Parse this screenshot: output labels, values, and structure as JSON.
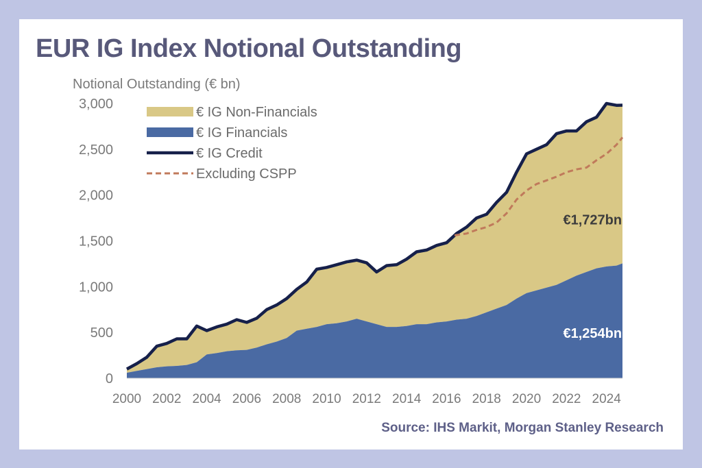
{
  "title": "EUR IG Index Notional Outstanding",
  "source": "Source: IHS Markit, Morgan Stanley Research",
  "colors": {
    "background": "#bfc5e4",
    "non_financials": "#d9c886",
    "financials": "#4a6aa3",
    "credit": "#16204a",
    "excluding_cspp": "#c07a5b",
    "title": "#58597a"
  },
  "chart_data": {
    "type": "area",
    "ylabel": "Notional Outstanding (€ bn)",
    "xlabel": "",
    "xlim": [
      2000,
      2024.8
    ],
    "ylim": [
      0,
      3000
    ],
    "yticks": [
      0,
      500,
      1000,
      1500,
      2000,
      2500,
      3000
    ],
    "ytick_labels": [
      "0",
      "500",
      "1,000",
      "1,500",
      "2,000",
      "2,500",
      "3,000"
    ],
    "xticks": [
      2000,
      2002,
      2004,
      2006,
      2008,
      2010,
      2012,
      2014,
      2016,
      2018,
      2020,
      2022,
      2024
    ],
    "xtick_labels": [
      "2000",
      "2002",
      "2004",
      "2006",
      "2008",
      "2010",
      "2012",
      "2014",
      "2016",
      "2018",
      "2020",
      "2022",
      "2024"
    ],
    "grid": false,
    "legend_position": "top-left",
    "series": [
      {
        "name": "€ IG Non-Financials",
        "kind": "area",
        "x": [
          2000,
          2000.5,
          2001,
          2001.5,
          2002,
          2002.5,
          2003,
          2003.5,
          2004,
          2004.5,
          2005,
          2005.5,
          2006,
          2006.5,
          2007,
          2007.5,
          2008,
          2008.5,
          2009,
          2009.5,
          2010,
          2010.5,
          2011,
          2011.5,
          2012,
          2012.5,
          2013,
          2013.5,
          2014,
          2014.5,
          2015,
          2015.5,
          2016,
          2016.5,
          2017,
          2017.5,
          2018,
          2018.5,
          2019,
          2019.5,
          2020,
          2020.5,
          2021,
          2021.5,
          2022,
          2022.5,
          2023,
          2023.5,
          2024,
          2024.5,
          2024.8
        ],
        "values": [
          40,
          80,
          130,
          230,
          250,
          295,
          285,
          395,
          260,
          285,
          295,
          335,
          300,
          320,
          380,
          400,
          430,
          450,
          510,
          630,
          620,
          640,
          650,
          640,
          640,
          570,
          670,
          680,
          730,
          790,
          810,
          840,
          860,
          940,
          1000,
          1070,
          1070,
          1160,
          1230,
          1380,
          1520,
          1540,
          1560,
          1650,
          1630,
          1580,
          1640,
          1650,
          1780,
          1750,
          1727
        ]
      },
      {
        "name": "€ IG Financials",
        "kind": "area",
        "x": [
          2000,
          2000.5,
          2001,
          2001.5,
          2002,
          2002.5,
          2003,
          2003.5,
          2004,
          2004.5,
          2005,
          2005.5,
          2006,
          2006.5,
          2007,
          2007.5,
          2008,
          2008.5,
          2009,
          2009.5,
          2010,
          2010.5,
          2011,
          2011.5,
          2012,
          2012.5,
          2013,
          2013.5,
          2014,
          2014.5,
          2015,
          2015.5,
          2016,
          2016.5,
          2017,
          2017.5,
          2018,
          2018.5,
          2019,
          2019.5,
          2020,
          2020.5,
          2021,
          2021.5,
          2022,
          2022.5,
          2023,
          2023.5,
          2024,
          2024.5,
          2024.8
        ],
        "values": [
          60,
          80,
          100,
          120,
          130,
          135,
          145,
          175,
          260,
          275,
          295,
          305,
          310,
          335,
          370,
          400,
          440,
          520,
          540,
          560,
          590,
          600,
          620,
          650,
          620,
          590,
          560,
          560,
          570,
          590,
          590,
          610,
          620,
          640,
          650,
          680,
          720,
          760,
          800,
          870,
          930,
          960,
          990,
          1020,
          1070,
          1120,
          1160,
          1200,
          1220,
          1230,
          1254
        ]
      },
      {
        "name": "€ IG Credit",
        "kind": "line",
        "x": [
          2000,
          2000.5,
          2001,
          2001.5,
          2002,
          2002.5,
          2003,
          2003.5,
          2004,
          2004.5,
          2005,
          2005.5,
          2006,
          2006.5,
          2007,
          2007.5,
          2008,
          2008.5,
          2009,
          2009.5,
          2010,
          2010.5,
          2011,
          2011.5,
          2012,
          2012.5,
          2013,
          2013.5,
          2014,
          2014.5,
          2015,
          2015.5,
          2016,
          2016.5,
          2017,
          2017.5,
          2018,
          2018.5,
          2019,
          2019.5,
          2020,
          2020.5,
          2021,
          2021.5,
          2022,
          2022.5,
          2023,
          2023.5,
          2024,
          2024.5,
          2024.8
        ],
        "values": [
          100,
          160,
          230,
          350,
          380,
          430,
          430,
          570,
          520,
          560,
          590,
          640,
          610,
          655,
          750,
          800,
          870,
          970,
          1050,
          1190,
          1210,
          1240,
          1270,
          1290,
          1260,
          1160,
          1230,
          1240,
          1300,
          1380,
          1400,
          1450,
          1480,
          1580,
          1650,
          1750,
          1790,
          1920,
          2030,
          2250,
          2450,
          2500,
          2550,
          2670,
          2700,
          2700,
          2800,
          2850,
          3000,
          2980,
          2981
        ]
      },
      {
        "name": "Excluding CSPP",
        "kind": "dashed-line",
        "x": [
          2016.4,
          2017,
          2017.5,
          2018,
          2018.5,
          2019,
          2019.5,
          2020,
          2020.5,
          2021,
          2021.5,
          2022,
          2022.5,
          2023,
          2023.5,
          2024,
          2024.5,
          2024.8
        ],
        "values": [
          1560,
          1580,
          1620,
          1650,
          1700,
          1800,
          1950,
          2050,
          2120,
          2160,
          2200,
          2250,
          2280,
          2300,
          2380,
          2450,
          2550,
          2630
        ]
      }
    ],
    "annotations": [
      {
        "text": "€1,727bn",
        "x": 2023.3,
        "y": 1680,
        "style": "dark"
      },
      {
        "text": "€1,254bn",
        "x": 2023.3,
        "y": 440,
        "style": "light"
      }
    ]
  }
}
